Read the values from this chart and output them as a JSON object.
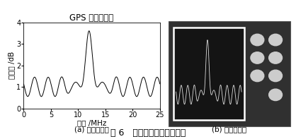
{
  "title_left": "GPS 信号频谱图",
  "xlabel_left": "频率 /MHz",
  "ylabel_left": "功率谱 /dB",
  "xlim": [
    0,
    25
  ],
  "ylim": [
    0,
    4
  ],
  "xticks": [
    0,
    5,
    10,
    15,
    20,
    25
  ],
  "yticks": [
    0,
    1,
    2,
    3,
    4
  ],
  "caption_left": "(a) 仿真波形图",
  "caption_right": "(b) 测试波形图",
  "figure_caption": "图 6   基带／中频模块频谱图",
  "line_color": "#000000",
  "background_color": "#ffffff",
  "plot_bg": "#ffffff",
  "title_fontsize": 8.5,
  "label_fontsize": 7.5,
  "tick_fontsize": 7,
  "caption_fontsize": 7.5,
  "fig_caption_fontsize": 9
}
